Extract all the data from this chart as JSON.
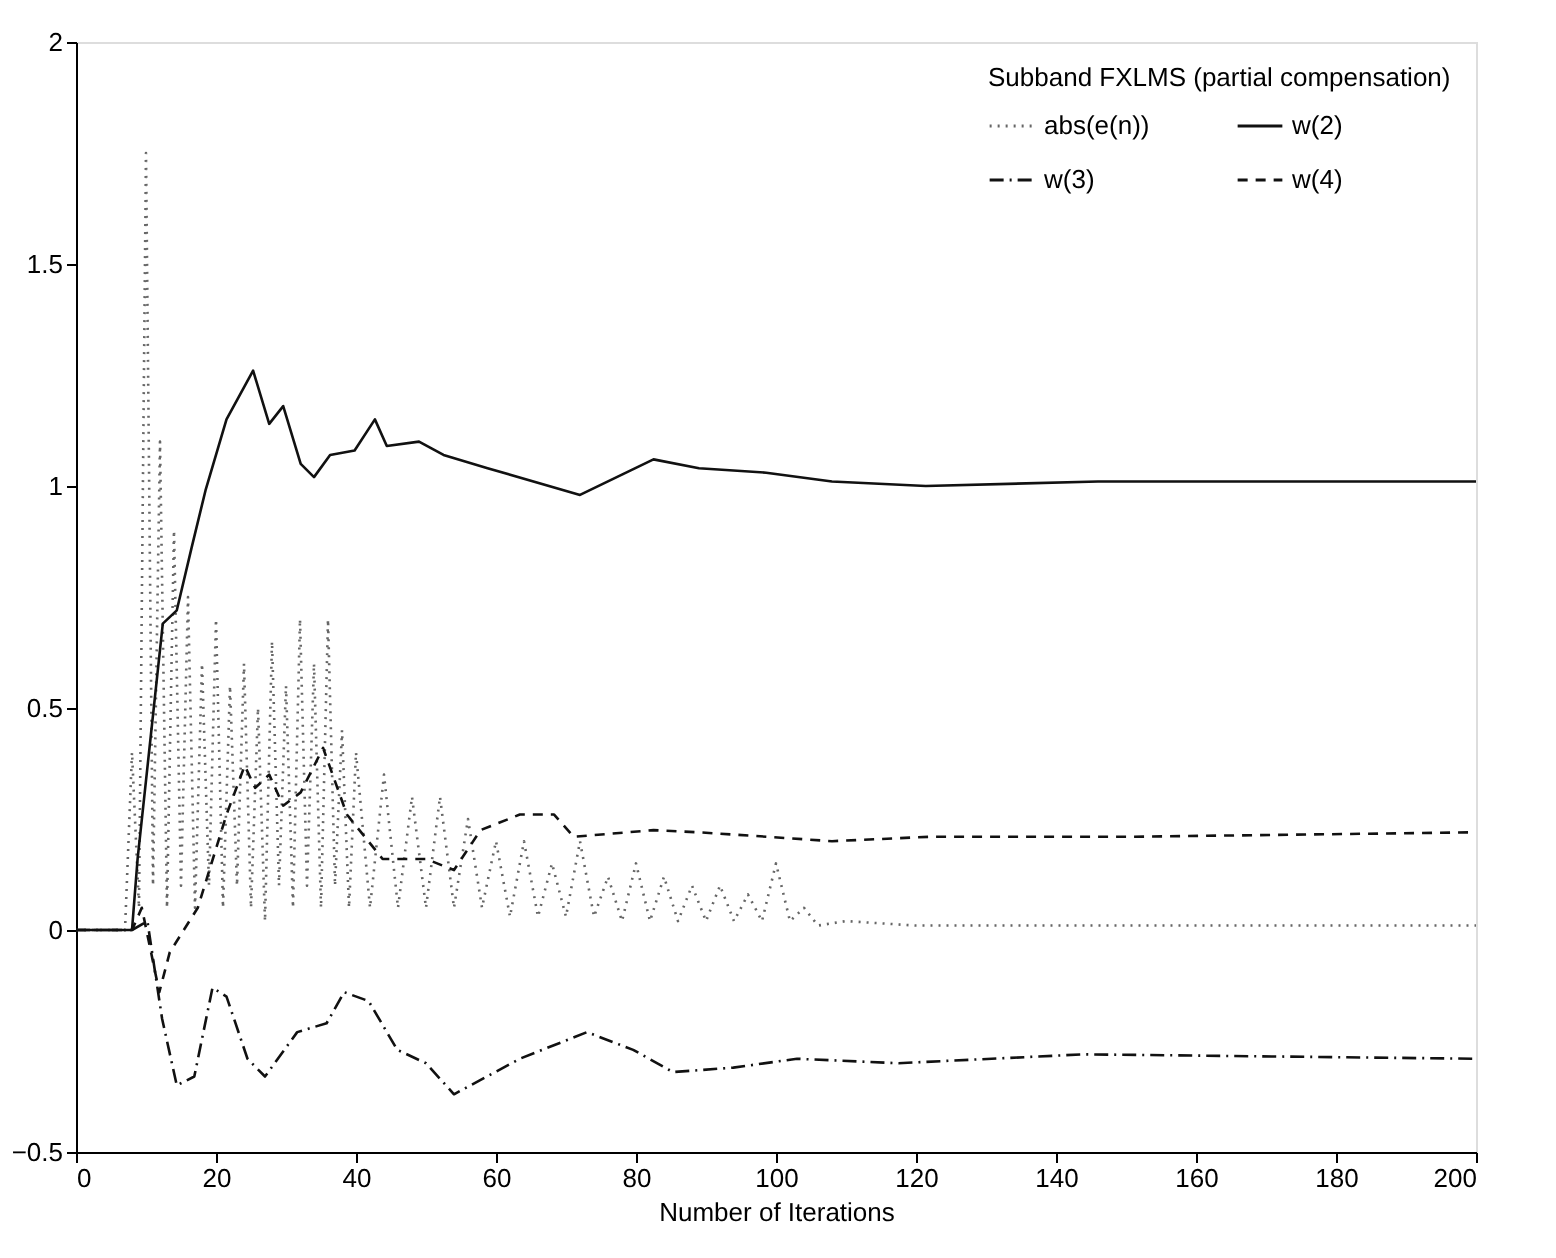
{
  "chart_data": {
    "type": "line",
    "xlabel": "Number of Iterations",
    "legend_title": "Subband FXLMS (partial compensation)",
    "legend": "top right",
    "grid": false,
    "marker": "none",
    "xlim": [
      0,
      200
    ],
    "xticks": [
      0,
      20,
      40,
      60,
      80,
      100,
      120,
      140,
      160,
      180,
      200
    ],
    "ylim": [
      -0.5,
      2
    ],
    "yticks": [
      -0.5,
      0,
      0.5,
      1,
      1.5,
      2
    ],
    "series": [
      {
        "name": "abs(e(n))",
        "color": "#666666",
        "line_style": "dotted",
        "x": [
          0,
          7,
          8,
          9,
          10,
          11,
          12,
          13,
          14,
          15,
          16,
          17,
          18,
          19,
          20,
          21,
          22,
          23,
          24,
          25,
          26,
          27,
          28,
          29,
          30,
          31,
          32,
          33,
          34,
          35,
          36,
          37,
          38,
          39,
          40,
          42,
          44,
          46,
          48,
          50,
          52,
          54,
          56,
          58,
          60,
          62,
          64,
          66,
          68,
          70,
          72,
          74,
          76,
          78,
          80,
          82,
          84,
          86,
          88,
          90,
          92,
          94,
          96,
          98,
          100,
          102,
          104,
          106,
          110,
          120,
          130,
          140,
          150,
          160,
          170,
          180,
          190,
          200
        ],
        "values": [
          0,
          0,
          0.4,
          0.05,
          1.75,
          0.1,
          1.1,
          0.05,
          0.9,
          0.1,
          0.75,
          0.05,
          0.6,
          0.1,
          0.7,
          0.05,
          0.55,
          0.1,
          0.6,
          0.05,
          0.5,
          0.02,
          0.65,
          0.1,
          0.55,
          0.05,
          0.7,
          0.1,
          0.6,
          0.05,
          0.7,
          0.1,
          0.45,
          0.05,
          0.4,
          0.05,
          0.35,
          0.05,
          0.3,
          0.05,
          0.3,
          0.05,
          0.25,
          0.05,
          0.2,
          0.03,
          0.2,
          0.03,
          0.15,
          0.03,
          0.2,
          0.03,
          0.12,
          0.02,
          0.15,
          0.02,
          0.12,
          0.02,
          0.1,
          0.02,
          0.1,
          0.02,
          0.08,
          0.02,
          0.15,
          0.02,
          0.05,
          0.01,
          0.02,
          0.01,
          0.01,
          0.01,
          0.01,
          0.01,
          0.01,
          0.01,
          0.01,
          0.01
        ]
      },
      {
        "name": "w(2)",
        "color": "#111111",
        "line_style": "solid",
        "x": [
          0,
          8,
          8.8,
          12.4,
          14.4,
          16.5,
          18.5,
          21.5,
          25.3,
          27.6,
          29.6,
          32.1,
          34,
          36.3,
          39.8,
          42.7,
          44.4,
          49,
          52.5,
          58.8,
          72,
          82.5,
          89,
          98.6,
          108,
          121.4,
          146,
          200
        ],
        "values": [
          0,
          0,
          0.16,
          0.69,
          0.72,
          0.86,
          0.99,
          1.15,
          1.26,
          1.14,
          1.18,
          1.05,
          1.02,
          1.07,
          1.08,
          1.15,
          1.09,
          1.1,
          1.07,
          1.04,
          0.98,
          1.06,
          1.04,
          1.03,
          1.01,
          1.0,
          1.01,
          1.01
        ]
      },
      {
        "name": "w(3)",
        "color": "#111111",
        "line_style": "dashdot",
        "x": [
          0,
          8,
          10.2,
          12.3,
          14.4,
          16.9,
          19.5,
          21.5,
          24.5,
          27,
          31.6,
          35.8,
          38.3,
          41.8,
          45.9,
          50,
          54,
          63.4,
          73,
          79.6,
          85.3,
          93.9,
          103,
          117.5,
          144,
          200
        ],
        "values": [
          0,
          0,
          0.02,
          -0.2,
          -0.35,
          -0.33,
          -0.13,
          -0.15,
          -0.29,
          -0.33,
          -0.23,
          -0.21,
          -0.14,
          -0.16,
          -0.27,
          -0.3,
          -0.37,
          -0.29,
          -0.23,
          -0.27,
          -0.32,
          -0.31,
          -0.29,
          -0.3,
          -0.28,
          -0.29
        ]
      },
      {
        "name": "w(4)",
        "color": "#111111",
        "line_style": "dashed",
        "x": [
          0,
          8,
          9.4,
          11.9,
          13.4,
          17.4,
          21.5,
          24.1,
          25.6,
          27.6,
          29.6,
          32.1,
          35.3,
          38.7,
          43.8,
          45.8,
          50,
          54,
          57.8,
          63.4,
          68.3,
          71.1,
          82.5,
          89,
          98.7,
          108,
          122,
          150.8,
          200
        ],
        "values": [
          0,
          0,
          0.05,
          -0.14,
          -0.05,
          0.05,
          0.26,
          0.37,
          0.32,
          0.35,
          0.28,
          0.31,
          0.41,
          0.26,
          0.16,
          0.16,
          0.16,
          0.135,
          0.225,
          0.26,
          0.26,
          0.21,
          0.225,
          0.22,
          0.21,
          0.2,
          0.21,
          0.21,
          0.22
        ]
      }
    ]
  }
}
